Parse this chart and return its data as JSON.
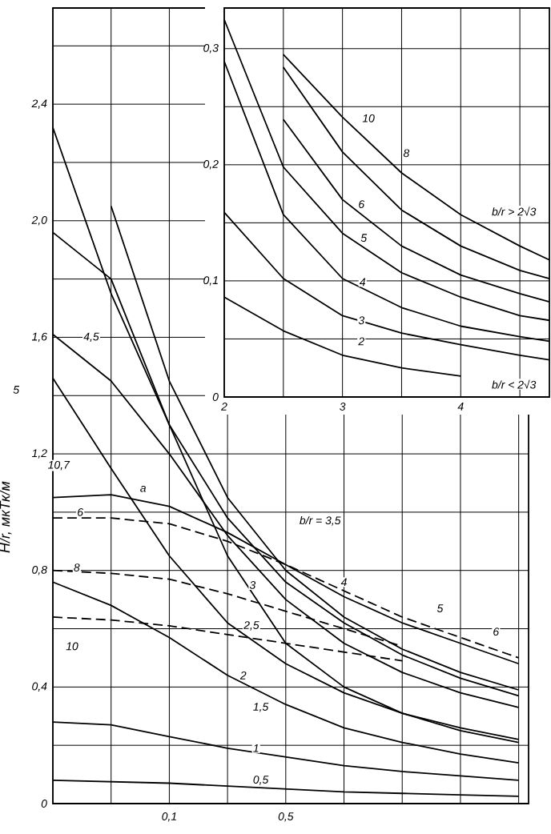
{
  "chart_data": [
    {
      "type": "line",
      "ylabel": "H/r, мкТк/м",
      "categories": [
        null,
        null,
        "0,1",
        null,
        "0,5",
        null,
        null,
        null,
        null
      ],
      "ylim": [
        0,
        2.73
      ],
      "yticks": [
        0,
        {
          "value": 0.2,
          "label": null
        },
        {
          "value": 0.4,
          "label": "0,4"
        },
        {
          "value": 0.6,
          "label": null
        },
        {
          "value": 0.8,
          "label": "0,8"
        },
        {
          "value": 1.0,
          "label": null
        },
        {
          "value": 1.2,
          "label": "1,2"
        },
        {
          "value": 1.4,
          "label": null
        },
        {
          "value": 1.6,
          "label": "1,6"
        },
        {
          "value": 1.8,
          "label": null
        },
        {
          "value": 2.0,
          "label": "2,0"
        },
        {
          "value": 2.2,
          "label": null
        },
        {
          "value": 2.4,
          "label": "2,4"
        },
        {
          "value": 2.6,
          "label": null
        }
      ],
      "grid": true,
      "color": "#000000",
      "series": [
        {
          "values": [
            0.08,
            0.075,
            0.07,
            0.06,
            0.05,
            0.04,
            0.035,
            0.03,
            0.025
          ]
        },
        {
          "values": [
            0.28,
            0.27,
            0.23,
            0.19,
            0.16,
            0.13,
            0.11,
            0.095,
            0.08
          ]
        },
        {
          "values": [
            0.76,
            0.68,
            0.57,
            0.44,
            0.34,
            0.26,
            0.21,
            0.17,
            0.14
          ]
        },
        {
          "values": [
            1.96,
            1.8,
            1.3,
            0.85,
            0.55,
            0.4,
            0.31,
            0.25,
            0.21
          ]
        },
        {
          "values": [
            1.46,
            1.15,
            0.85,
            0.62,
            0.48,
            0.38,
            0.31,
            0.26,
            0.22
          ]
        },
        {
          "values": [
            1.61,
            1.45,
            1.2,
            0.92,
            0.7,
            0.55,
            0.45,
            0.38,
            0.33
          ]
        },
        {
          "values": [
            null,
            2.05,
            1.45,
            1.05,
            0.8,
            0.64,
            0.53,
            0.45,
            0.39
          ]
        },
        {
          "values": [
            2.32,
            1.75,
            1.3,
            0.98,
            0.76,
            0.62,
            0.51,
            0.43,
            0.37
          ]
        },
        {
          "values": [
            1.05,
            1.06,
            1.02,
            0.93,
            0.82,
            0.71,
            0.62,
            0.55,
            0.48
          ]
        },
        {
          "values": [
            0.98,
            0.98,
            0.96,
            0.9,
            0.82,
            0.73,
            0.64,
            0.57,
            0.5
          ],
          "line_style": "dashed"
        },
        {
          "values": [
            0.8,
            0.79,
            0.77,
            0.72,
            0.66,
            0.6,
            0.54,
            null,
            null
          ],
          "line_style": "dashed"
        },
        {
          "values": [
            0.64,
            0.63,
            0.61,
            0.58,
            0.55,
            0.52,
            0.49,
            null,
            null
          ],
          "line_style": "dashed"
        }
      ],
      "annotations": [
        "5",
        "4,5",
        "10,7",
        "6",
        "a",
        "8",
        "10",
        "b/r = 3,5",
        "4",
        "5",
        "6",
        "3",
        "2,5",
        "2",
        "1,5",
        "1",
        "0,5"
      ]
    },
    {
      "type": "line",
      "x": [
        2,
        2.5,
        3,
        3.5,
        4,
        4.5,
        4.75
      ],
      "xlim": [
        2,
        4.75
      ],
      "ylim": [
        0,
        0.335
      ],
      "xticks": [
        2,
        {
          "value": 2.5,
          "label": null
        },
        3,
        {
          "value": 3.5,
          "label": null
        },
        4,
        {
          "value": 4.5,
          "label": null
        }
      ],
      "yticks": [
        0,
        {
          "value": 0.05,
          "label": null
        },
        {
          "value": 0.1,
          "label": "0,1"
        },
        {
          "value": 0.15,
          "label": null
        },
        {
          "value": 0.2,
          "label": "0,2"
        },
        {
          "value": 0.25,
          "label": null
        },
        {
          "value": 0.3,
          "label": "0,3"
        }
      ],
      "grid": true,
      "color": "#000000",
      "series": [
        {
          "values": [
            0.086,
            0.057,
            0.036,
            0.025,
            0.018,
            null,
            null
          ]
        },
        {
          "values": [
            0.159,
            0.102,
            0.07,
            0.055,
            0.045,
            0.036,
            0.032
          ]
        },
        {
          "values": [
            0.289,
            0.157,
            0.102,
            0.077,
            0.061,
            0.052,
            0.048
          ]
        },
        {
          "values": [
            0.325,
            0.198,
            0.141,
            0.107,
            0.086,
            0.07,
            0.066
          ]
        },
        {
          "values": [
            null,
            0.239,
            0.17,
            0.13,
            0.105,
            0.089,
            0.082
          ]
        },
        {
          "values": [
            null,
            0.284,
            0.211,
            0.161,
            0.13,
            0.109,
            0.102
          ]
        },
        {
          "values": [
            null,
            0.295,
            0.241,
            0.193,
            0.157,
            0.13,
            0.118
          ]
        }
      ],
      "annotations": [
        "10",
        "8",
        "6",
        "5",
        "4",
        "3",
        "2",
        "b/r > 2√3",
        "b/r < 2√3"
      ]
    }
  ]
}
